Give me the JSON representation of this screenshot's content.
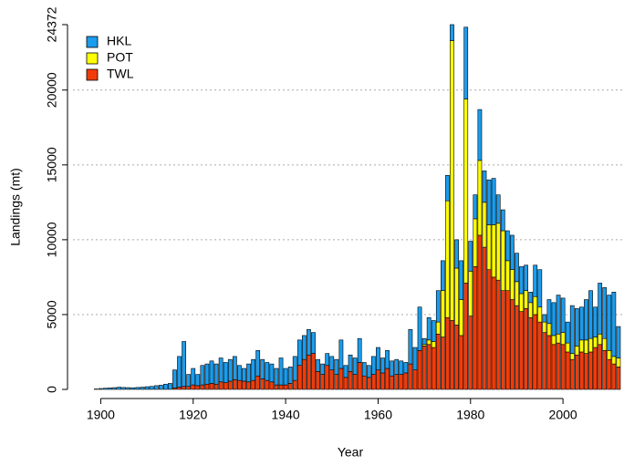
{
  "chart_data": {
    "type": "stacked-bar",
    "x_label": "Year",
    "y_label": "Landings (mt)",
    "x": [
      1899,
      1900,
      1901,
      1902,
      1903,
      1904,
      1905,
      1906,
      1907,
      1908,
      1909,
      1910,
      1911,
      1912,
      1913,
      1914,
      1915,
      1916,
      1917,
      1918,
      1919,
      1920,
      1921,
      1922,
      1923,
      1924,
      1925,
      1926,
      1927,
      1928,
      1929,
      1930,
      1931,
      1932,
      1933,
      1934,
      1935,
      1936,
      1937,
      1938,
      1939,
      1940,
      1941,
      1942,
      1943,
      1944,
      1945,
      1946,
      1947,
      1948,
      1949,
      1950,
      1951,
      1952,
      1953,
      1954,
      1955,
      1956,
      1957,
      1958,
      1959,
      1960,
      1961,
      1962,
      1963,
      1964,
      1965,
      1966,
      1967,
      1968,
      1969,
      1970,
      1971,
      1972,
      1973,
      1974,
      1975,
      1976,
      1977,
      1978,
      1979,
      1980,
      1981,
      1982,
      1983,
      1984,
      1985,
      1986,
      1987,
      1988,
      1989,
      1990,
      1991,
      1992,
      1993,
      1994,
      1995,
      1996,
      1997,
      1998,
      1999,
      2000,
      2001,
      2002,
      2003,
      2004,
      2005,
      2006,
      2007,
      2008,
      2009,
      2010,
      2011,
      2012
    ],
    "series": [
      {
        "name": "TWL",
        "color": "#f03c0a",
        "values": [
          0,
          0,
          0,
          0,
          0,
          0,
          0,
          0,
          0,
          0,
          0,
          0,
          0,
          0,
          0,
          0,
          0,
          100,
          150,
          200,
          200,
          300,
          250,
          300,
          350,
          400,
          350,
          500,
          450,
          550,
          650,
          600,
          550,
          500,
          600,
          900,
          700,
          600,
          500,
          300,
          300,
          300,
          400,
          600,
          1600,
          2000,
          2300,
          2400,
          1200,
          1000,
          1600,
          1300,
          1000,
          1400,
          800,
          1200,
          1000,
          1800,
          900,
          800,
          1000,
          1300,
          1100,
          1400,
          900,
          1000,
          1000,
          1100,
          1700,
          1300,
          2600,
          2900,
          3000,
          2800,
          3700,
          3500,
          4800,
          4600,
          4300,
          3600,
          7100,
          4900,
          8200,
          10300,
          9500,
          8000,
          7500,
          7300,
          6600,
          6600,
          6000,
          5600,
          5200,
          5400,
          4800,
          5000,
          4500,
          3800,
          3600,
          3000,
          3100,
          3000,
          2500,
          2000,
          2300,
          2500,
          2400,
          2500,
          2800,
          3000,
          2600,
          2000,
          1700,
          1500
        ]
      },
      {
        "name": "POT",
        "color": "#ffff00",
        "values": [
          0,
          0,
          0,
          0,
          0,
          0,
          0,
          0,
          0,
          0,
          0,
          0,
          0,
          0,
          0,
          0,
          0,
          0,
          0,
          0,
          0,
          0,
          0,
          0,
          0,
          0,
          0,
          0,
          0,
          0,
          0,
          0,
          0,
          0,
          0,
          0,
          0,
          0,
          0,
          0,
          0,
          0,
          0,
          0,
          0,
          0,
          0,
          0,
          0,
          0,
          0,
          0,
          0,
          0,
          0,
          0,
          0,
          0,
          0,
          0,
          0,
          0,
          0,
          0,
          0,
          0,
          0,
          0,
          0,
          0,
          0,
          100,
          300,
          400,
          800,
          3100,
          7800,
          18700,
          3800,
          2400,
          12300,
          3000,
          3200,
          5000,
          3000,
          3000,
          3500,
          3800,
          4000,
          2000,
          2000,
          1600,
          1200,
          1200,
          1000,
          1200,
          1000,
          700,
          800,
          600,
          600,
          800,
          600,
          400,
          600,
          800,
          900,
          900,
          700,
          700,
          800,
          600,
          500,
          600
        ]
      },
      {
        "name": "HKL",
        "color": "#1c9cec",
        "values": [
          30,
          60,
          80,
          100,
          120,
          150,
          130,
          120,
          110,
          130,
          150,
          180,
          200,
          250,
          280,
          350,
          400,
          1200,
          2050,
          3000,
          800,
          1100,
          750,
          1300,
          1350,
          1500,
          1350,
          1600,
          1350,
          1450,
          1550,
          1000,
          850,
          1200,
          1400,
          1700,
          1300,
          1200,
          1200,
          1100,
          1800,
          1100,
          1100,
          1600,
          1700,
          1600,
          1700,
          1400,
          800,
          700,
          800,
          900,
          1000,
          1900,
          800,
          1100,
          1100,
          1600,
          900,
          800,
          1200,
          1500,
          1000,
          1200,
          1000,
          1000,
          900,
          700,
          2300,
          1500,
          2900,
          400,
          1500,
          1400,
          2100,
          2000,
          1700,
          1072,
          1900,
          2600,
          4800,
          2000,
          1600,
          3400,
          2100,
          3000,
          3100,
          1900,
          1400,
          2000,
          2300,
          1900,
          1800,
          1700,
          700,
          2100,
          2500,
          500,
          1600,
          2200,
          2600,
          2300,
          1400,
          3200,
          2500,
          2200,
          2700,
          3200,
          2000,
          3400,
          3400,
          3700,
          4300,
          2100
        ]
      }
    ],
    "xlim": [
      1894,
      2013
    ],
    "xticks": [
      1900,
      1920,
      1940,
      1960,
      1980,
      2000
    ],
    "ylim": [
      0,
      24372
    ],
    "yticks": [
      0,
      5000,
      10000,
      15000,
      20000,
      24372
    ],
    "grid": true,
    "legend": "top-left"
  }
}
